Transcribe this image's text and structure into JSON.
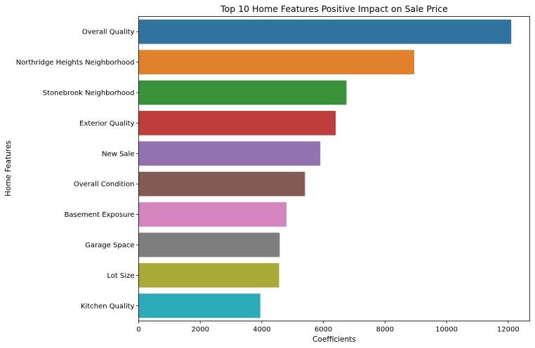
{
  "chart_data": {
    "type": "bar",
    "orientation": "horizontal",
    "title": "Top 10 Home Features Positive Impact on Sale Price",
    "xlabel": "Coefficients",
    "ylabel": "Home Features",
    "xlim": [
      0,
      12700
    ],
    "xticks": [
      0,
      2000,
      4000,
      6000,
      8000,
      10000,
      12000
    ],
    "grid": false,
    "legend": "none",
    "categories": [
      "Overall Quality",
      "Northridge Heights Neighborhood",
      "Stonebrook Neighborhood",
      "Exterior Quality",
      "New Sale",
      "Overall Condition",
      "Basement Exposure",
      "Garage Space",
      "Lot Size",
      "Kitchen Quality"
    ],
    "values": [
      12100,
      8950,
      6750,
      6400,
      5900,
      5400,
      4800,
      4580,
      4560,
      3950
    ],
    "colors": [
      "#3274a1",
      "#e1812c",
      "#3a923a",
      "#c03d3e",
      "#9372b2",
      "#845b53",
      "#d684bd",
      "#7f7f7f",
      "#a9aa35",
      "#2eabb8"
    ]
  }
}
